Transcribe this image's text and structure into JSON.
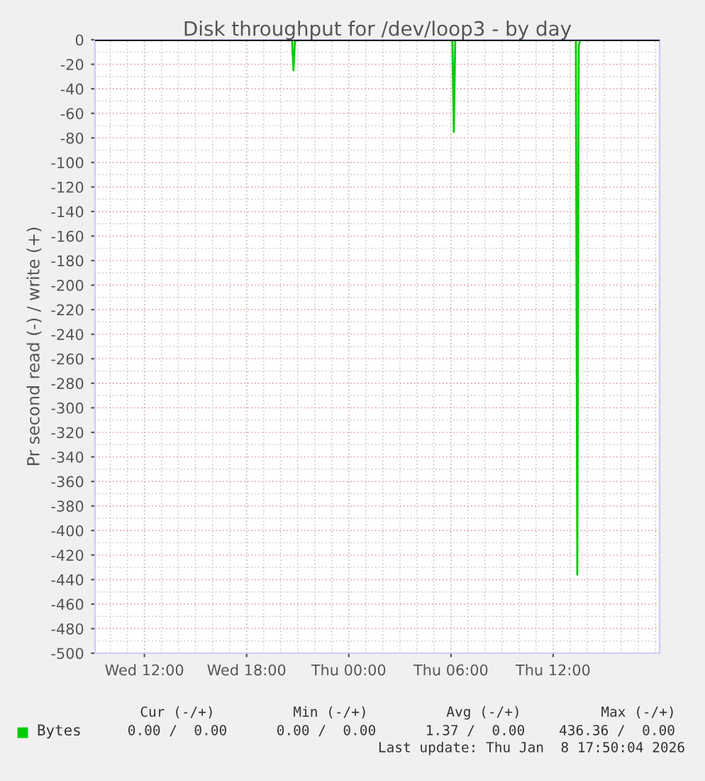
{
  "chart_data": {
    "type": "line",
    "title": "Disk throughput for /dev/loop3 - by day",
    "ylabel": "Pr second read (-) / write (+)",
    "x": [
      "2026-01-07T09:06",
      "2026-01-07T20:35",
      "2026-01-07T20:40",
      "2026-01-07T20:45",
      "2026-01-07T20:50",
      "2026-01-07T20:55",
      "2026-01-08T06:00",
      "2026-01-08T06:05",
      "2026-01-08T06:10",
      "2026-01-08T06:15",
      "2026-01-08T06:20",
      "2026-01-08T13:15",
      "2026-01-08T13:20",
      "2026-01-08T13:25",
      "2026-01-08T13:30",
      "2026-01-08T13:35",
      "2026-01-08T18:15"
    ],
    "series": [
      {
        "name": "Bytes",
        "color": "#00cc00",
        "values": [
          0,
          0,
          0,
          -25,
          -2,
          0,
          0,
          0,
          -75,
          0,
          0,
          0,
          0,
          -436,
          -5,
          0,
          0
        ]
      }
    ],
    "xlim": [
      "2026-01-07T09:06",
      "2026-01-08T18:15"
    ],
    "xticks": [
      {
        "value": "2026-01-07T12:00",
        "label": "Wed 12:00"
      },
      {
        "value": "2026-01-07T18:00",
        "label": "Wed 18:00"
      },
      {
        "value": "2026-01-08T00:00",
        "label": "Thu 00:00"
      },
      {
        "value": "2026-01-08T06:00",
        "label": "Thu 06:00"
      },
      {
        "value": "2026-01-08T12:00",
        "label": "Thu 12:00"
      }
    ],
    "ylim": [
      -500,
      0
    ],
    "yticks": [
      0,
      -20,
      -40,
      -60,
      -80,
      -100,
      -120,
      -140,
      -160,
      -180,
      -200,
      -220,
      -240,
      -260,
      -280,
      -300,
      -320,
      -340,
      -360,
      -380,
      -400,
      -420,
      -440,
      -460,
      -480,
      -500
    ],
    "ref_lines": [
      {
        "axis": "y",
        "value": 0,
        "color": "#000000"
      }
    ],
    "grid": true,
    "legend": "bottom left",
    "line_style": "solid",
    "marker": "none",
    "annotations": [
      "Cur (-/+)",
      "Min (-/+)",
      "Avg (-/+)",
      "Max (-/+)",
      "0.00 /  0.00",
      "0.00 /  0.00",
      "1.37 /  0.00",
      "436.36 /  0.00",
      "Last update: Thu Jan  8 17:50:04 2026"
    ]
  }
}
